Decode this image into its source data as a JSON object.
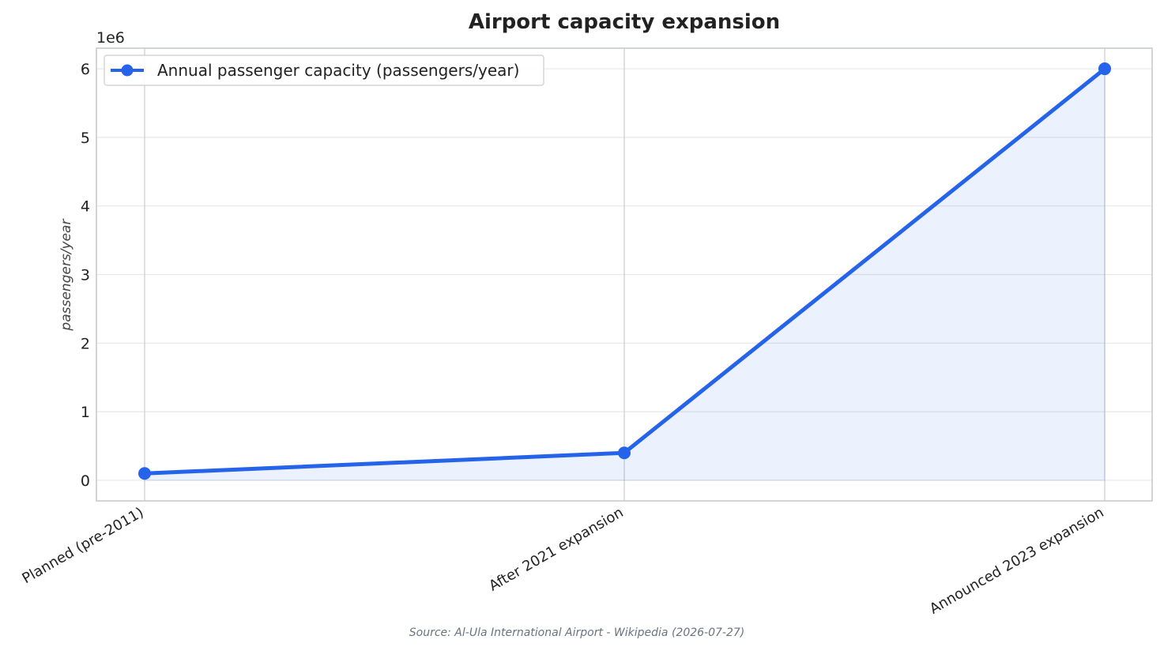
{
  "chart_data": {
    "type": "line",
    "title": "Airport capacity expansion",
    "categories": [
      "Planned (pre-2011)",
      "After 2021 expansion",
      "Announced 2023 expansion"
    ],
    "series": [
      {
        "name": "Annual passenger capacity (passengers/year)",
        "values": [
          100000,
          400000,
          6000000
        ],
        "color": "#2563eb"
      }
    ],
    "ylabel": "passengers/year",
    "y_offset_label": "1e6",
    "ylim": [
      -300000,
      6300000
    ],
    "yticks": [
      0,
      1000000,
      2000000,
      3000000,
      4000000,
      5000000,
      6000000
    ],
    "ytick_labels": [
      "0",
      "1",
      "2",
      "3",
      "4",
      "5",
      "6"
    ],
    "grid": true,
    "legend_position": "top-left",
    "fill_under": true
  },
  "source_note": "Source: Al-Ula International Airport - Wikipedia (2026-07-27)"
}
